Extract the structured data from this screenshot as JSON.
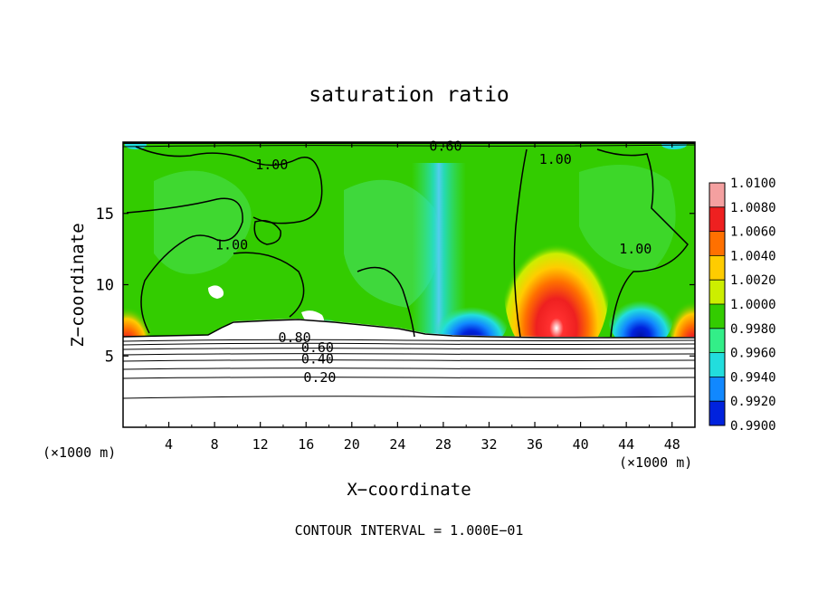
{
  "chart_data": {
    "type": "heatmap",
    "title": "saturation ratio",
    "xlabel": "X−coordinate",
    "ylabel": "Z−coordinate",
    "x_unit_label": "(×1000 m)",
    "z_unit_label": "(×1000 m)",
    "footer": "CONTOUR INTERVAL = 1.000E−01",
    "xlim": [
      0,
      50
    ],
    "ylim": [
      0,
      20
    ],
    "x_ticks": [
      4,
      8,
      12,
      16,
      20,
      24,
      28,
      32,
      36,
      40,
      44,
      48
    ],
    "x_tick_labels": [
      "4",
      "8",
      "12",
      "16",
      "20",
      "24",
      "28",
      "32",
      "36",
      "40",
      "44",
      "48"
    ],
    "y_ticks": [
      5,
      10,
      15
    ],
    "y_tick_labels": [
      "5",
      "10",
      "15"
    ],
    "colorbar": {
      "labels": [
        "1.0100",
        "1.0080",
        "1.0060",
        "1.0040",
        "1.0020",
        "1.0000",
        "0.9980",
        "0.9960",
        "0.9940",
        "0.9920",
        "0.9900"
      ],
      "values": [
        1.01,
        1.008,
        1.006,
        1.004,
        1.002,
        1.0,
        0.998,
        0.996,
        0.994,
        0.992,
        0.99
      ],
      "colors": [
        "#f4a0a0",
        "#ee2020",
        "#ff7000",
        "#ffcc00",
        "#ccee00",
        "#33cc00",
        "#33ee88",
        "#22dddd",
        "#1188ff",
        "#0022dd",
        "#5500aa"
      ]
    },
    "field_background": "#33cc00",
    "lower_region_background": "#ffffff",
    "features": [
      {
        "name": "red maximum",
        "x_center": 38,
        "z_top": 11.5,
        "z_bottom": 6.5,
        "max_value": 1.01
      },
      {
        "name": "left edge maximum",
        "x_center": 0.5,
        "z_top": 8.5,
        "z_bottom": 6.5,
        "max_value": 1.006
      },
      {
        "name": "right edge maximum",
        "x_center": 49.5,
        "z_top": 9,
        "z_bottom": 6.5,
        "max_value": 1.006
      },
      {
        "name": "blue minimum 1",
        "x_center": 29.5,
        "z_top": 8.5,
        "z_bottom": 6.5,
        "min_value": 0.992
      },
      {
        "name": "blue minimum 2",
        "x_center": 44.5,
        "z_top": 9,
        "z_bottom": 6.5,
        "min_value": 0.992
      },
      {
        "name": "cyan plume",
        "x_center": 27,
        "z_top": 18,
        "z_bottom": 6.5,
        "min_value": 0.996
      }
    ],
    "contour_labels": [
      {
        "text": "1.00",
        "x": 13,
        "z": 18.4
      },
      {
        "text": "0.60",
        "x": 28.2,
        "z": 19.7
      },
      {
        "text": "1.00",
        "x": 37.8,
        "z": 18.8
      },
      {
        "text": "1.00",
        "x": 9.5,
        "z": 12.8
      },
      {
        "text": "1.00",
        "x": 44.8,
        "z": 12.5
      },
      {
        "text": "0.80",
        "x": 15,
        "z": 6.3
      },
      {
        "text": "0.60",
        "x": 17,
        "z": 5.6
      },
      {
        "text": "0.40",
        "x": 17,
        "z": 4.8
      },
      {
        "text": "0.20",
        "x": 17.2,
        "z": 3.5
      }
    ],
    "contour_levels": [
      1.0,
      0.8,
      0.6,
      0.4,
      0.2
    ]
  }
}
